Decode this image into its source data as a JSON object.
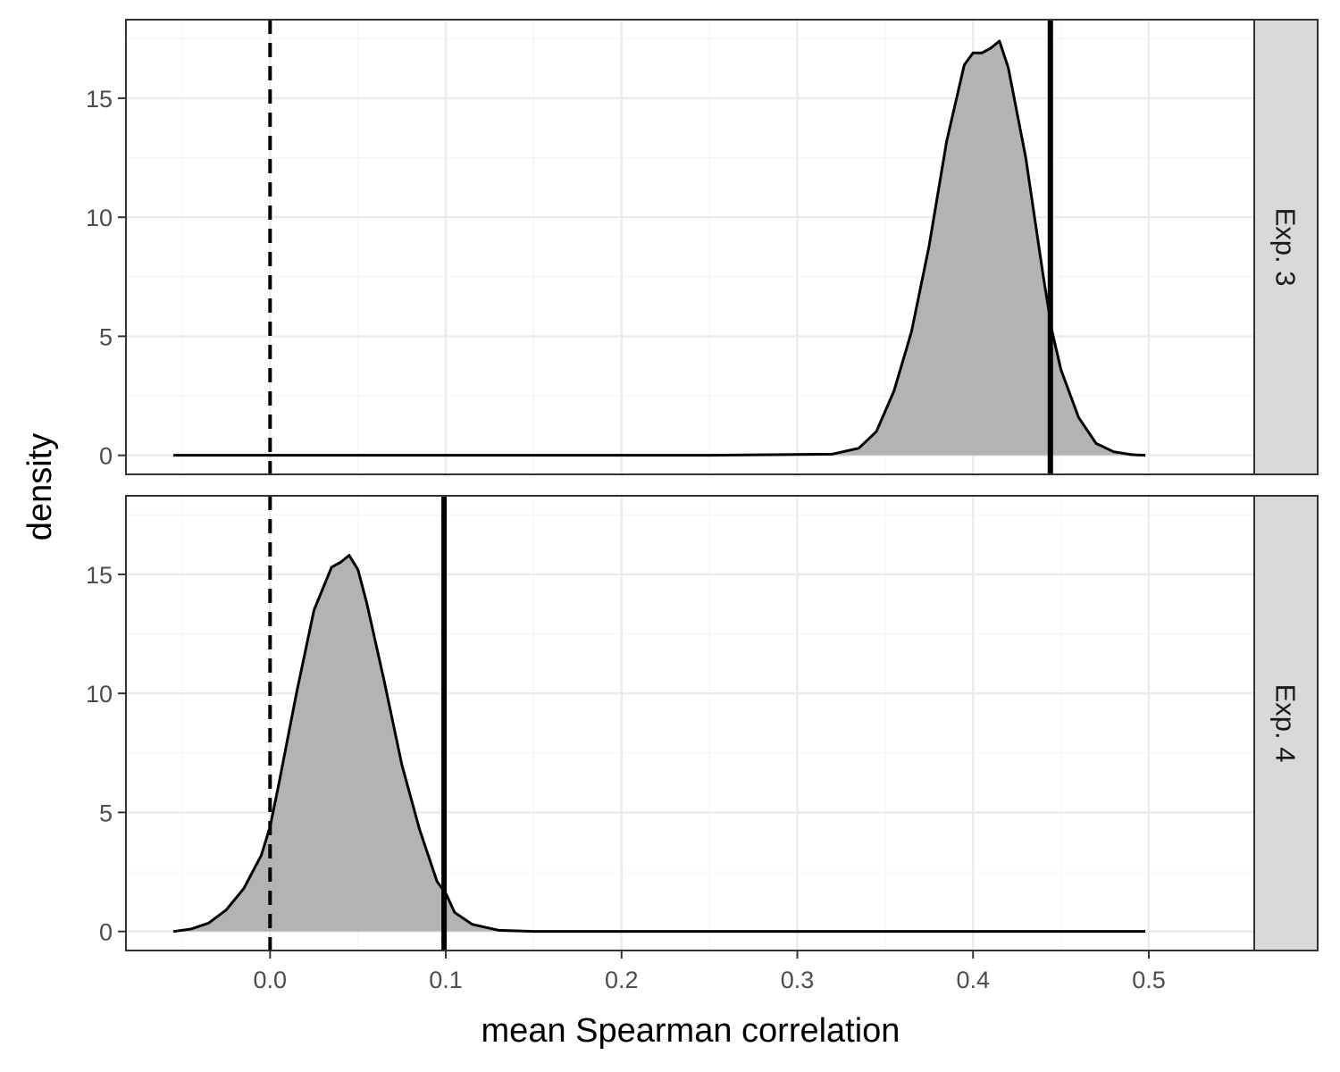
{
  "chart_data": {
    "type": "area",
    "xlabel": "mean Spearman correlation",
    "ylabel": "density",
    "xlim": [
      -0.082,
      0.56
    ],
    "ylim": [
      -0.8,
      18.3
    ],
    "x_ticks": [
      0.0,
      0.1,
      0.2,
      0.3,
      0.4,
      0.5
    ],
    "x_tick_labels": [
      "0.0",
      "0.1",
      "0.2",
      "0.3",
      "0.4",
      "0.5"
    ],
    "y_ticks": [
      0,
      5,
      10,
      15
    ],
    "y_tick_labels": [
      "0",
      "5",
      "10",
      "15"
    ],
    "grid": true,
    "reference_line": {
      "x": 0.0,
      "style": "dashed"
    },
    "panels": [
      {
        "strip_label": "Exp. 3",
        "observed_line": {
          "x": 0.444,
          "style": "solid"
        },
        "density": {
          "x": [
            -0.055,
            0.25,
            0.32,
            0.335,
            0.345,
            0.355,
            0.365,
            0.375,
            0.385,
            0.395,
            0.4,
            0.405,
            0.41,
            0.415,
            0.42,
            0.43,
            0.44,
            0.445,
            0.45,
            0.46,
            0.47,
            0.48,
            0.49,
            0.498
          ],
          "y": [
            0,
            0,
            0.05,
            0.3,
            1.0,
            2.7,
            5.2,
            8.8,
            13.2,
            16.4,
            16.9,
            16.9,
            17.1,
            17.4,
            16.3,
            12.5,
            7.5,
            5.2,
            3.6,
            1.6,
            0.5,
            0.15,
            0.03,
            0
          ]
        }
      },
      {
        "strip_label": "Exp. 4",
        "observed_line": {
          "x": 0.099,
          "style": "solid"
        },
        "density": {
          "x": [
            -0.055,
            -0.045,
            -0.035,
            -0.025,
            -0.015,
            -0.005,
            0.0,
            0.005,
            0.015,
            0.025,
            0.035,
            0.04,
            0.045,
            0.05,
            0.055,
            0.065,
            0.075,
            0.085,
            0.095,
            0.1,
            0.105,
            0.115,
            0.13,
            0.15,
            0.3,
            0.498
          ],
          "y": [
            0,
            0.1,
            0.35,
            0.9,
            1.8,
            3.2,
            4.4,
            6.2,
            10.0,
            13.5,
            15.3,
            15.5,
            15.8,
            15.2,
            13.8,
            10.5,
            7.0,
            4.3,
            2.1,
            1.6,
            0.8,
            0.3,
            0.05,
            0,
            0,
            0
          ]
        }
      }
    ]
  },
  "colors": {
    "panel_border": "#333333",
    "grid_major": "#ebebeb",
    "grid_minor": "#f5f5f5",
    "density_fill": "#b3b3b3",
    "line": "#000000",
    "strip_bg": "#d9d9d9"
  }
}
